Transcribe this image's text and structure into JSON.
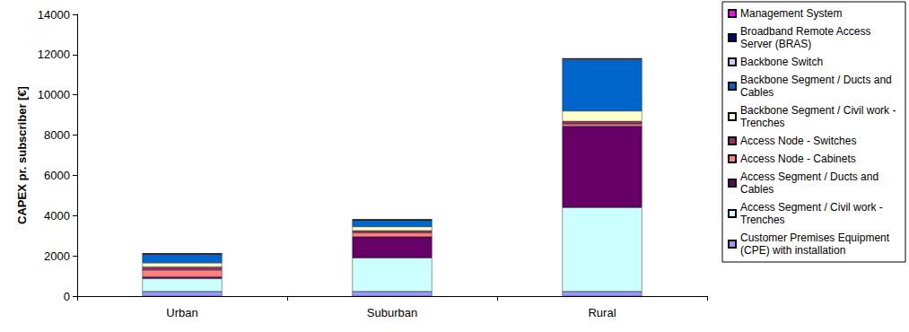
{
  "chart_data": {
    "type": "bar",
    "stacked": true,
    "y_label": "CAPEX pr. subscriber [€]",
    "categories": [
      "Urban",
      "Suburban",
      "Rural"
    ],
    "ylim": [
      0,
      14000
    ],
    "yticks": [
      0,
      2000,
      4000,
      6000,
      8000,
      10000,
      12000,
      14000
    ],
    "grid": false,
    "legend": "right",
    "series": [
      {
        "name": "Customer Premises Equipment (CPE) with installation",
        "color": "#9999FF",
        "values": [
          230,
          230,
          230
        ]
      },
      {
        "name": "Access Segment / Civil work - Trenches",
        "color": "#CCFFFF",
        "values": [
          640,
          1670,
          4170
        ]
      },
      {
        "name": "Access Segment / Ducts and Cables",
        "color": "#660066",
        "values": [
          90,
          1050,
          4050
        ]
      },
      {
        "name": "Access Node - Cabinets",
        "color": "#FF8080",
        "values": [
          340,
          200,
          100
        ]
      },
      {
        "name": "Access Node - Switches",
        "color": "#993366",
        "values": [
          150,
          100,
          130
        ]
      },
      {
        "name": "Backbone Segment / Civil work - Trenches",
        "color": "#FFFFCC",
        "values": [
          200,
          200,
          520
        ]
      },
      {
        "name": "Backbone Segment / Ducts and Cables",
        "color": "#0066CC",
        "values": [
          430,
          320,
          2550
        ]
      },
      {
        "name": "Backbone Switch",
        "color": "#CCCCFF",
        "values": [
          20,
          20,
          30
        ]
      },
      {
        "name": "Broadband Remote Access Server (BRAS)",
        "color": "#000080",
        "values": [
          10,
          10,
          20
        ]
      },
      {
        "name": "Management System",
        "color": "#FF00FF",
        "values": [
          5,
          5,
          5
        ]
      }
    ]
  }
}
